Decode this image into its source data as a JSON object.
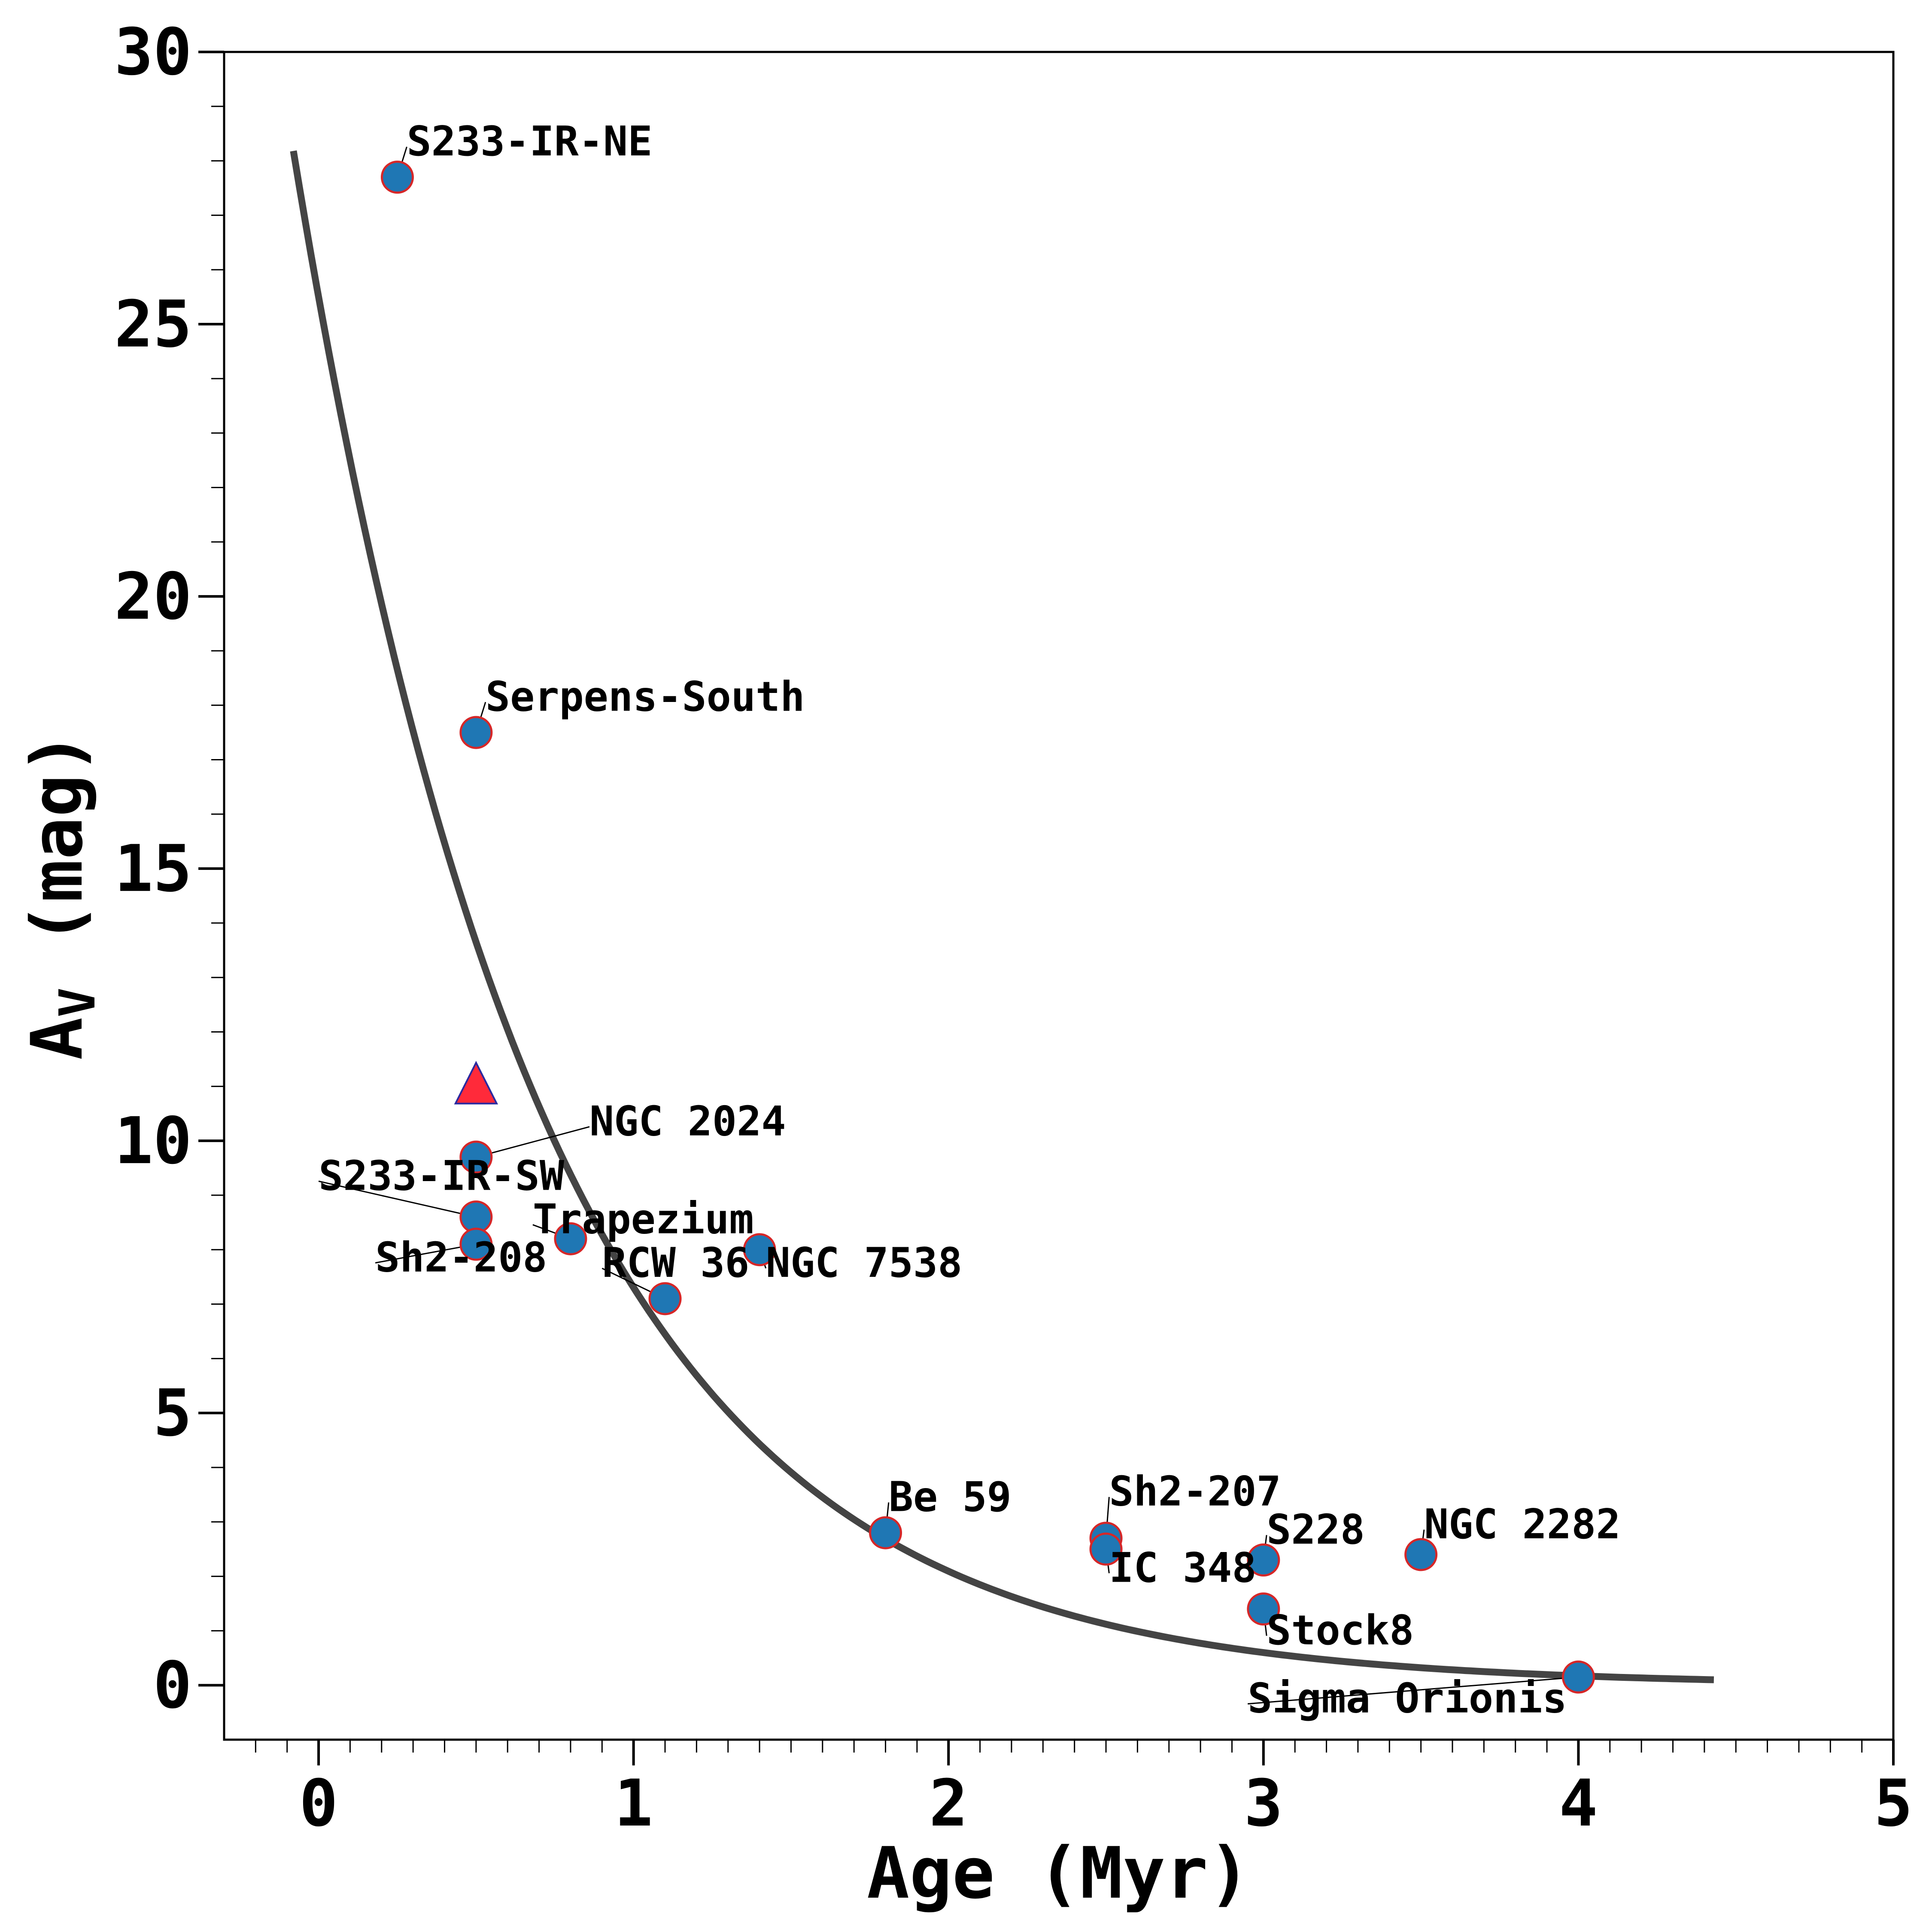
{
  "chart_data": {
    "type": "scatter",
    "xlabel": "Age (Myr)",
    "ylabel_main": "A",
    "ylabel_sub": "V",
    "ylabel_unit": " (mag)",
    "xlim": [
      -0.3,
      5
    ],
    "ylim": [
      -1,
      30
    ],
    "x_ticks": [
      {
        "value": 0,
        "label": "0"
      },
      {
        "value": 1,
        "label": "1"
      },
      {
        "value": 2,
        "label": "2"
      },
      {
        "value": 3,
        "label": "3"
      },
      {
        "value": 4,
        "label": "4"
      },
      {
        "value": 5,
        "label": "5"
      }
    ],
    "y_ticks": [
      {
        "value": 0,
        "label": "0"
      },
      {
        "value": 5,
        "label": "5"
      },
      {
        "value": 10,
        "label": "10"
      },
      {
        "value": 15,
        "label": "15"
      },
      {
        "value": 20,
        "label": "20"
      },
      {
        "value": 25,
        "label": "25"
      },
      {
        "value": 30,
        "label": "30"
      }
    ],
    "x_minor_step": 0.1,
    "y_minor_step": 1,
    "fit_curve": {
      "model": "A_V = 25.5 * exp(-age / 0.8)",
      "amplitude": 25.5,
      "scale_myr": 0.8,
      "x_start": -0.08,
      "x_end": 4.43,
      "color": "#444444"
    },
    "points": [
      {
        "name": "S233-IR-NE",
        "age": 0.25,
        "av": 27.7,
        "lx": 0.28,
        "ly": 28.1
      },
      {
        "name": "Serpens-South",
        "age": 0.5,
        "av": 17.5,
        "lx": 0.53,
        "ly": 17.9
      },
      {
        "name": "NGC 2024",
        "age": 0.5,
        "av": 9.7,
        "lx": 0.86,
        "ly": 10.1
      },
      {
        "name": "S233-IR-SW",
        "age": 0.5,
        "av": 8.6,
        "lx": 0.0,
        "ly": 9.1
      },
      {
        "name": "Sh2-208",
        "age": 0.5,
        "av": 8.1,
        "lx": 0.18,
        "ly": 7.6
      },
      {
        "name": "Trapezium",
        "age": 0.8,
        "av": 8.2,
        "lx": 0.68,
        "ly": 8.3
      },
      {
        "name": "RCW 36",
        "age": 1.1,
        "av": 7.1,
        "lx": 0.9,
        "ly": 7.5
      },
      {
        "name": "NGC 7538",
        "age": 1.4,
        "av": 8.0,
        "lx": 1.42,
        "ly": 7.5
      },
      {
        "name": "Be 59",
        "age": 1.8,
        "av": 2.8,
        "lx": 1.81,
        "ly": 3.2
      },
      {
        "name": "Sh2-207",
        "age": 2.5,
        "av": 2.7,
        "lx": 2.51,
        "ly": 3.3
      },
      {
        "name": "IC 348",
        "age": 2.5,
        "av": 2.5,
        "lx": 2.51,
        "ly": 1.9
      },
      {
        "name": "S228",
        "age": 3.0,
        "av": 2.3,
        "lx": 3.01,
        "ly": 2.6
      },
      {
        "name": "Stock8",
        "age": 3.0,
        "av": 1.4,
        "lx": 3.01,
        "ly": 0.75
      },
      {
        "name": "NGC 2282",
        "age": 3.5,
        "av": 2.4,
        "lx": 3.51,
        "ly": 2.7
      },
      {
        "name": "Sigma Orionis",
        "age": 4.0,
        "av": 0.15,
        "lx": 2.95,
        "ly": -0.5
      }
    ],
    "highlight": {
      "age": 0.5,
      "av": 11.0
    },
    "colors": {
      "point_fill": "#1f77b4",
      "point_edge": "#d62728",
      "triangle_fill": "#ff2a3a",
      "triangle_edge": "#2a2aa0",
      "axis": "#000000"
    }
  }
}
